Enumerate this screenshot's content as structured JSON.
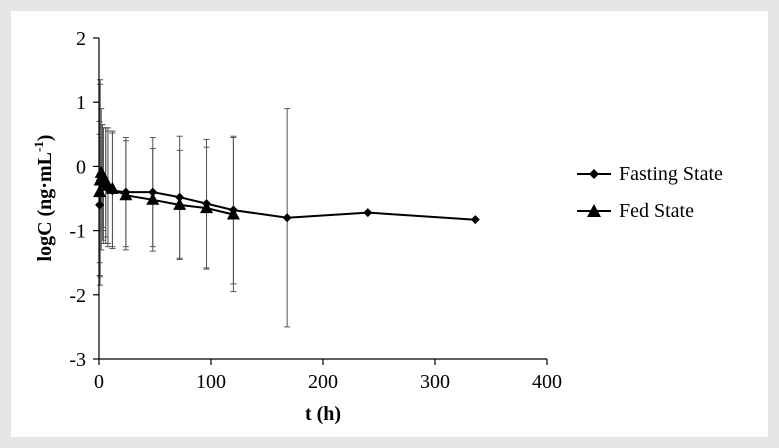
{
  "chart_data": {
    "type": "line",
    "xlabel": "t (h)",
    "ylabel_main": "logC (ng·mL",
    "ylabel_sup": "-1",
    "ylabel_close": ")",
    "xlim": [
      0,
      400
    ],
    "ylim": [
      -3,
      2
    ],
    "xticks": [
      0,
      100,
      200,
      300,
      400
    ],
    "yticks": [
      -3,
      -2,
      -1,
      0,
      1,
      2
    ],
    "grid": false,
    "legend_position": "right",
    "series": [
      {
        "name": "Fasting State",
        "marker": "diamond",
        "x": [
          0.5,
          1,
          2,
          3,
          4,
          6,
          8,
          12,
          24,
          48,
          72,
          96,
          120,
          168,
          240,
          336
        ],
        "y": [
          -0.6,
          -0.25,
          -0.2,
          -0.25,
          -0.3,
          -0.3,
          -0.35,
          -0.38,
          -0.4,
          -0.4,
          -0.48,
          -0.58,
          -0.68,
          -0.8,
          -0.72,
          -0.83
        ],
        "err": [
          1.1,
          1.6,
          1.1,
          0.9,
          0.9,
          0.9,
          0.9,
          0.9,
          0.85,
          0.85,
          0.95,
          1.0,
          1.15,
          1.7,
          0,
          0
        ]
      },
      {
        "name": "Fed State",
        "marker": "triangle",
        "x": [
          0.5,
          1,
          2,
          3,
          4,
          6,
          8,
          12,
          24,
          48,
          72,
          96,
          120
        ],
        "y": [
          -0.4,
          -0.22,
          -0.1,
          -0.15,
          -0.2,
          -0.25,
          -0.3,
          -0.35,
          -0.45,
          -0.52,
          -0.6,
          -0.65,
          -0.75
        ],
        "err": [
          1.1,
          1.5,
          0.55,
          0.8,
          0.8,
          0.85,
          0.9,
          0.9,
          0.85,
          0.8,
          0.85,
          0.95,
          1.2
        ]
      }
    ]
  }
}
